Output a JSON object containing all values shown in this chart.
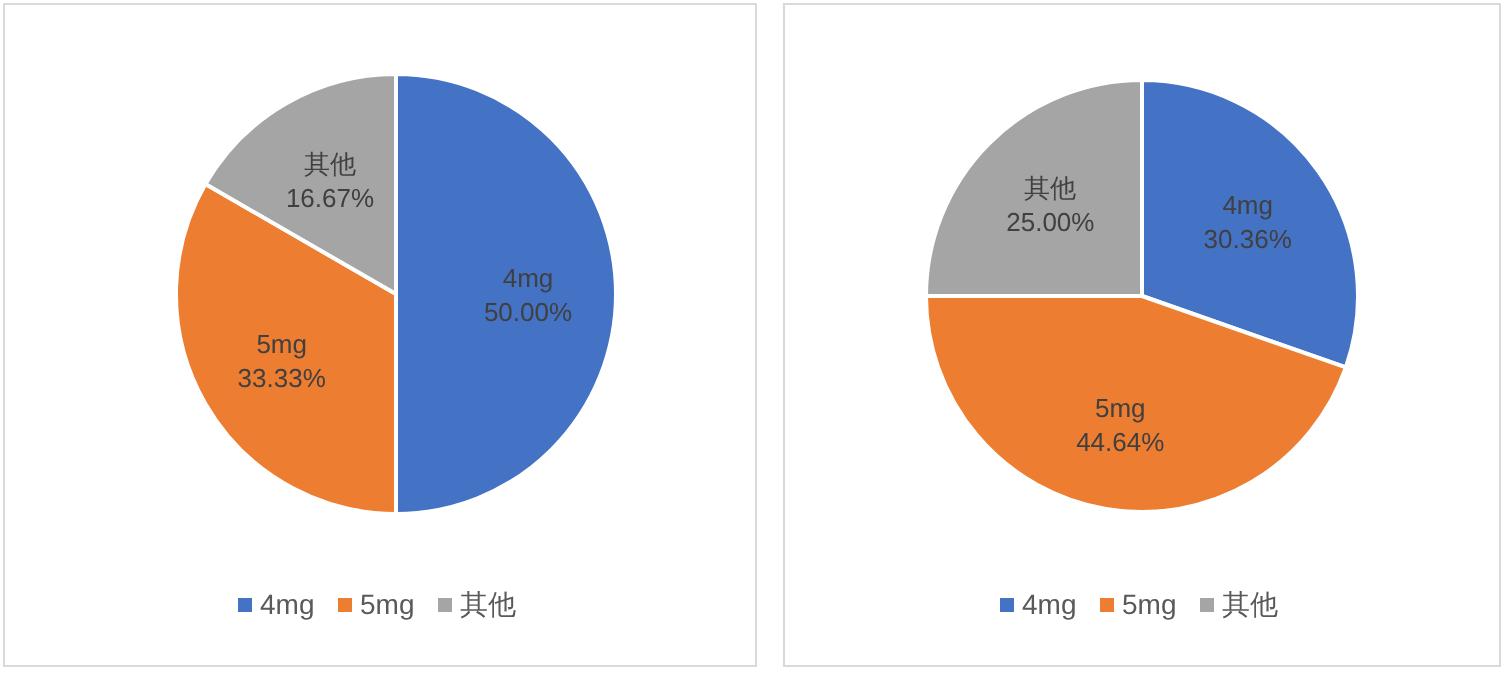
{
  "chart_data": [
    {
      "type": "pie",
      "categories": [
        "4mg",
        "5mg",
        "其他"
      ],
      "values": [
        50.0,
        33.33,
        16.67
      ],
      "colors": [
        "#4472c4",
        "#ed7d31",
        "#a5a5a5"
      ],
      "value_labels": [
        "50.00%",
        "33.33%",
        "16.67%"
      ],
      "legend": "bottom"
    },
    {
      "type": "pie",
      "categories": [
        "4mg",
        "5mg",
        "其他"
      ],
      "values": [
        30.36,
        44.64,
        25.0
      ],
      "colors": [
        "#4472c4",
        "#ed7d31",
        "#a5a5a5"
      ],
      "value_labels": [
        "30.36%",
        "44.64%",
        "25.00%"
      ],
      "legend": "bottom"
    }
  ]
}
